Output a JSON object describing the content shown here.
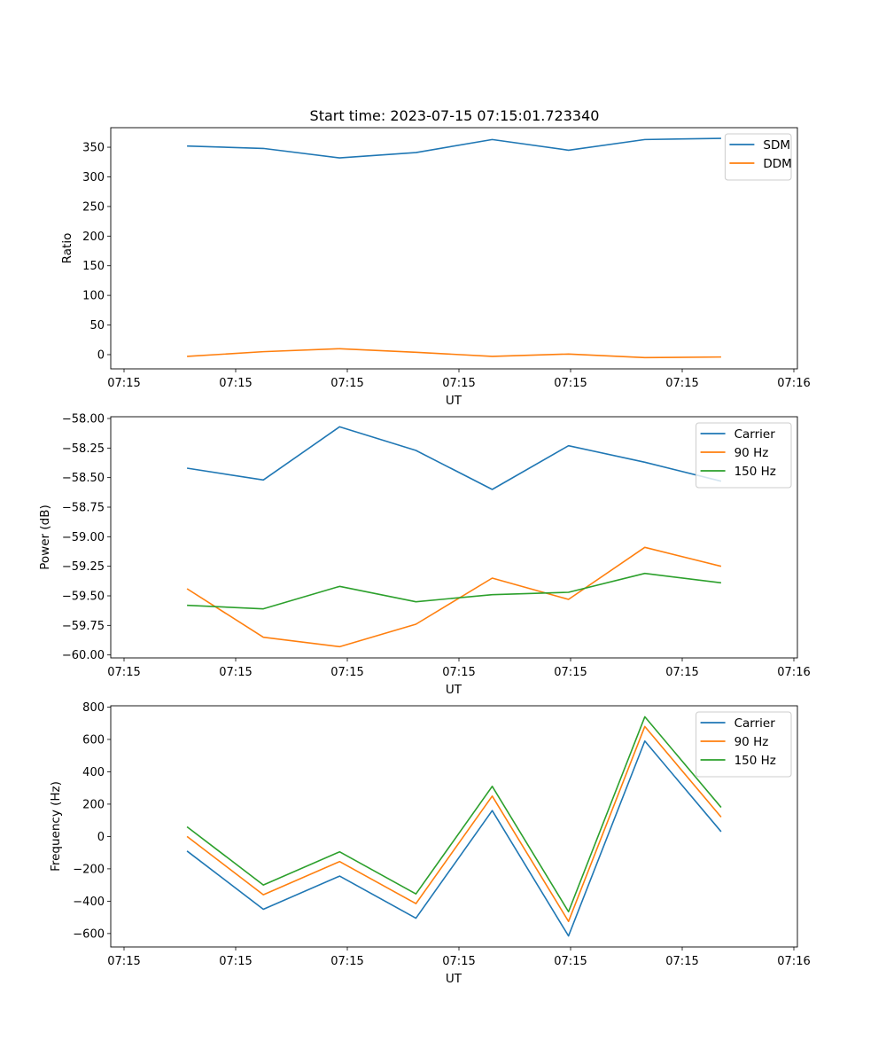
{
  "chart_data": [
    {
      "type": "line",
      "title": "Start time: 2023-07-15 07:15:01.723340",
      "xlabel": "UT",
      "ylabel": "Ratio",
      "x_tick_labels": [
        "07:15",
        "07:15",
        "07:15",
        "07:15",
        "07:15",
        "07:15",
        "07:16"
      ],
      "y_ticks": [
        0,
        50,
        100,
        150,
        200,
        250,
        300,
        350
      ],
      "ylim": [
        -24,
        383
      ],
      "x": [
        1,
        2,
        3,
        4,
        5,
        6,
        7,
        8
      ],
      "xlim": [
        0,
        9
      ],
      "legend_position": "top-right",
      "series": [
        {
          "name": "SDM",
          "color": "#1f77b4",
          "values": [
            352,
            348,
            332,
            341,
            363,
            345,
            363,
            365
          ]
        },
        {
          "name": "DDM",
          "color": "#ff7f0e",
          "values": [
            -3,
            5,
            10,
            4,
            -3,
            1,
            -5,
            -4
          ]
        }
      ]
    },
    {
      "type": "line",
      "title": "",
      "xlabel": "UT",
      "ylabel": "Power (dB)",
      "x_tick_labels": [
        "07:15",
        "07:15",
        "07:15",
        "07:15",
        "07:15",
        "07:15",
        "07:16"
      ],
      "y_ticks": [
        -60.0,
        -59.75,
        -59.5,
        -59.25,
        -59.0,
        -58.75,
        -58.5,
        -58.25,
        -58.0
      ],
      "y_tick_labels": [
        "−60.00",
        "−59.75",
        "−59.50",
        "−59.25",
        "−59.00",
        "−58.75",
        "−58.50",
        "−58.25",
        "−58.00"
      ],
      "ylim": [
        -60.025,
        -57.985
      ],
      "x": [
        1,
        2,
        3,
        4,
        5,
        6,
        7,
        8
      ],
      "xlim": [
        0,
        9
      ],
      "legend_position": "top-right",
      "series": [
        {
          "name": "Carrier",
          "color": "#1f77b4",
          "values": [
            -58.42,
            -58.52,
            -58.07,
            -58.27,
            -58.6,
            -58.23,
            -58.37,
            -58.53
          ]
        },
        {
          "name": "90 Hz",
          "color": "#ff7f0e",
          "values": [
            -59.44,
            -59.85,
            -59.93,
            -59.74,
            -59.35,
            -59.53,
            -59.09,
            -59.25
          ]
        },
        {
          "name": "150 Hz",
          "color": "#2ca02c",
          "values": [
            -59.58,
            -59.61,
            -59.42,
            -59.55,
            -59.49,
            -59.47,
            -59.31,
            -59.39
          ]
        }
      ]
    },
    {
      "type": "line",
      "title": "",
      "xlabel": "UT",
      "ylabel": "Frequency (Hz)",
      "x_tick_labels": [
        "07:15",
        "07:15",
        "07:15",
        "07:15",
        "07:15",
        "07:15",
        "07:16"
      ],
      "y_ticks": [
        -600,
        -400,
        -200,
        0,
        200,
        400,
        600,
        800
      ],
      "y_tick_labels": [
        "−600",
        "−400",
        "−200",
        "0",
        "200",
        "400",
        "600",
        "800"
      ],
      "ylim": [
        -683,
        808
      ],
      "x": [
        1,
        2,
        3,
        4,
        5,
        6,
        7,
        8
      ],
      "xlim": [
        0,
        9
      ],
      "legend_position": "top-right",
      "series": [
        {
          "name": "Carrier",
          "color": "#1f77b4",
          "values": [
            -90,
            -450,
            -245,
            -505,
            160,
            -615,
            590,
            30
          ]
        },
        {
          "name": "90 Hz",
          "color": "#ff7f0e",
          "values": [
            0,
            -360,
            -155,
            -415,
            250,
            -525,
            680,
            120
          ]
        },
        {
          "name": "150 Hz",
          "color": "#2ca02c",
          "values": [
            60,
            -300,
            -95,
            -355,
            310,
            -465,
            740,
            180
          ]
        }
      ]
    }
  ]
}
